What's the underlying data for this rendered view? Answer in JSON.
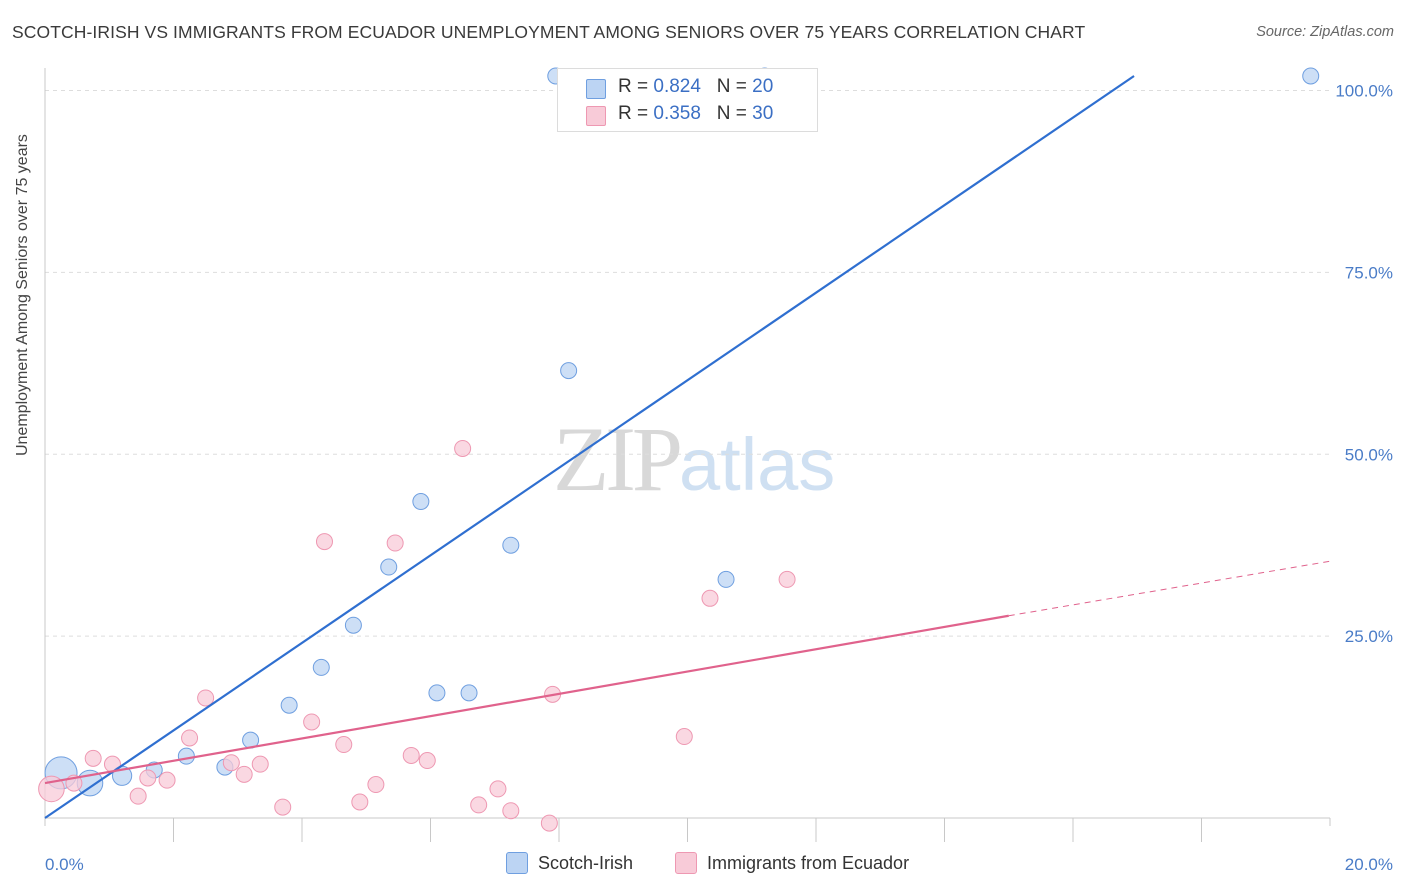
{
  "title": "SCOTCH-IRISH VS IMMIGRANTS FROM ECUADOR UNEMPLOYMENT AMONG SENIORS OVER 75 YEARS CORRELATION CHART",
  "source": "Source: ZipAtlas.com",
  "watermark": {
    "zip": "ZIP",
    "atlas": "atlas"
  },
  "legend": {
    "rows": [
      {
        "r_label": "R = ",
        "r_value": "0.824",
        "n_label": "N = ",
        "n_value": "20"
      },
      {
        "r_label": "R = ",
        "r_value": "0.358",
        "n_label": "N = ",
        "n_value": "30"
      }
    ]
  },
  "chart_data": {
    "type": "scatter",
    "title": "SCOTCH-IRISH VS IMMIGRANTS FROM ECUADOR UNEMPLOYMENT AMONG SENIORS OVER 75 YEARS CORRELATION CHART",
    "xlabel": "",
    "ylabel": "Unemployment Among Seniors over 75 years",
    "xlim": [
      0,
      20
    ],
    "ylim": [
      0,
      102
    ],
    "x_ticks": [
      "0.0%",
      "20.0%"
    ],
    "y_ticks": [
      {
        "value": 25,
        "label": "25.0%"
      },
      {
        "value": 50,
        "label": "50.0%"
      },
      {
        "value": 75,
        "label": "75.0%"
      },
      {
        "value": 100,
        "label": "100.0%"
      }
    ],
    "grid": "horizontal dashed",
    "series": [
      {
        "name": "Scotch-Irish",
        "color": "#6f9fe0",
        "fill": "#bcd4f3",
        "line_color": "#2f6fd0",
        "points": [
          {
            "x": 0.25,
            "y": 6.2,
            "size": 2.0
          },
          {
            "x": 0.7,
            "y": 4.8,
            "size": 1.6
          },
          {
            "x": 1.2,
            "y": 5.8,
            "size": 1.2
          },
          {
            "x": 1.7,
            "y": 6.6,
            "size": 1.0
          },
          {
            "x": 2.2,
            "y": 8.5,
            "size": 1.0
          },
          {
            "x": 2.8,
            "y": 7.0,
            "size": 1.0
          },
          {
            "x": 3.2,
            "y": 10.7,
            "size": 1.0
          },
          {
            "x": 3.8,
            "y": 15.5,
            "size": 1.0
          },
          {
            "x": 4.3,
            "y": 20.7,
            "size": 1.0
          },
          {
            "x": 4.8,
            "y": 26.5,
            "size": 1.0
          },
          {
            "x": 5.35,
            "y": 34.5,
            "size": 1.0
          },
          {
            "x": 5.85,
            "y": 43.5,
            "size": 1.0
          },
          {
            "x": 6.1,
            "y": 17.2,
            "size": 1.0
          },
          {
            "x": 6.6,
            "y": 17.2,
            "size": 1.0
          },
          {
            "x": 7.25,
            "y": 37.5,
            "size": 1.0
          },
          {
            "x": 8.15,
            "y": 61.5,
            "size": 1.0
          },
          {
            "x": 10.6,
            "y": 32.8,
            "size": 1.0
          },
          {
            "x": 7.95,
            "y": 102.0,
            "size": 1.0
          },
          {
            "x": 11.2,
            "y": 102.0,
            "size": 1.0
          },
          {
            "x": 19.7,
            "y": 102.0,
            "size": 1.0
          }
        ],
        "trend": {
          "x0": 0,
          "y0": 0,
          "x1": 16.95,
          "y1": 102.0
        }
      },
      {
        "name": "Immigrants from Ecuador",
        "color": "#ee98b2",
        "fill": "#f8cbd8",
        "line_color": "#e0628c",
        "points": [
          {
            "x": 0.1,
            "y": 4.0,
            "size": 1.6
          },
          {
            "x": 0.45,
            "y": 4.8,
            "size": 1.0
          },
          {
            "x": 0.75,
            "y": 8.2,
            "size": 1.0
          },
          {
            "x": 1.05,
            "y": 7.4,
            "size": 1.0
          },
          {
            "x": 1.45,
            "y": 3.0,
            "size": 1.0
          },
          {
            "x": 1.6,
            "y": 5.5,
            "size": 1.0
          },
          {
            "x": 1.9,
            "y": 5.2,
            "size": 1.0
          },
          {
            "x": 2.25,
            "y": 11.0,
            "size": 1.0
          },
          {
            "x": 2.5,
            "y": 16.5,
            "size": 1.0
          },
          {
            "x": 2.9,
            "y": 7.6,
            "size": 1.0
          },
          {
            "x": 3.1,
            "y": 6.0,
            "size": 1.0
          },
          {
            "x": 3.35,
            "y": 7.4,
            "size": 1.0
          },
          {
            "x": 3.7,
            "y": 1.5,
            "size": 1.0
          },
          {
            "x": 4.15,
            "y": 13.2,
            "size": 1.0
          },
          {
            "x": 4.35,
            "y": 38.0,
            "size": 1.0
          },
          {
            "x": 4.65,
            "y": 10.1,
            "size": 1.0
          },
          {
            "x": 4.9,
            "y": 2.2,
            "size": 1.0
          },
          {
            "x": 5.15,
            "y": 4.6,
            "size": 1.0
          },
          {
            "x": 5.45,
            "y": 37.8,
            "size": 1.0
          },
          {
            "x": 5.7,
            "y": 8.6,
            "size": 1.0
          },
          {
            "x": 5.95,
            "y": 7.9,
            "size": 1.0
          },
          {
            "x": 6.5,
            "y": 50.8,
            "size": 1.0
          },
          {
            "x": 6.75,
            "y": 1.8,
            "size": 1.0
          },
          {
            "x": 7.05,
            "y": 4.0,
            "size": 1.0
          },
          {
            "x": 7.25,
            "y": 1.0,
            "size": 1.0
          },
          {
            "x": 7.85,
            "y": -0.7,
            "size": 1.0
          },
          {
            "x": 7.9,
            "y": 17.0,
            "size": 1.0
          },
          {
            "x": 9.95,
            "y": 11.2,
            "size": 1.0
          },
          {
            "x": 10.35,
            "y": 30.2,
            "size": 1.0
          },
          {
            "x": 11.55,
            "y": 32.8,
            "size": 1.0
          }
        ],
        "trend": {
          "x0": 0,
          "y0": 4.8,
          "x1": 15.0,
          "y1": 27.8
        },
        "trend_dashed": {
          "x0": 15.0,
          "y0": 27.8,
          "x1": 20.0,
          "y1": 35.3
        }
      }
    ]
  },
  "colors": {
    "axis": "#c8c8c8",
    "grid": "#dddddd",
    "tick_text": "#4a7cc7"
  }
}
